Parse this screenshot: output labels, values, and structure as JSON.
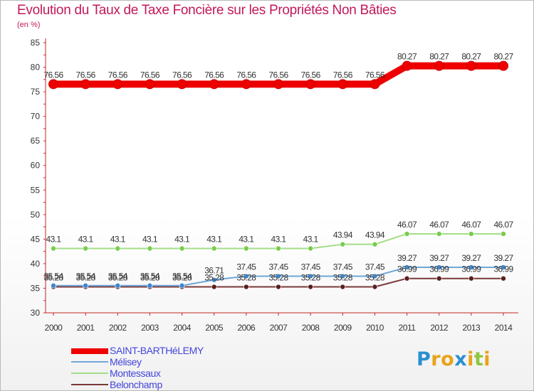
{
  "header": {
    "title": "Evolution du Taux de Taxe Foncière sur les Propriétés Non Bâties",
    "units": "(en %)"
  },
  "chart_data": {
    "type": "line",
    "title": "Evolution du Taux de Taxe Foncière sur les Propriétés Non Bâties",
    "ylabel": "(en %)",
    "xlabel": "",
    "x": [
      "2000",
      "2001",
      "2002",
      "2003",
      "2004",
      "2005",
      "2006",
      "2007",
      "2008",
      "2009",
      "2010",
      "2011",
      "2012",
      "2013",
      "2014"
    ],
    "ylim": [
      30,
      85
    ],
    "yticks": [
      30,
      35,
      40,
      45,
      50,
      55,
      60,
      65,
      70,
      75,
      80,
      85
    ],
    "grid": false,
    "legend": "bottom-left",
    "series": [
      {
        "name": "SAINT-BARTHéLEMY",
        "color": "#ee0000",
        "width": "thick",
        "values": [
          76.56,
          76.56,
          76.56,
          76.56,
          76.56,
          76.56,
          76.56,
          76.56,
          76.56,
          76.56,
          76.56,
          80.27,
          80.27,
          80.27,
          80.27
        ],
        "labels": [
          "76.56",
          "76.56",
          "76.56",
          "76.56",
          "76.56",
          "76.56",
          "76.56",
          "76.56",
          "76.56",
          "76.56",
          "76.56",
          "80.27",
          "80.27",
          "80.27",
          "80.27"
        ]
      },
      {
        "name": "Mélisey",
        "color": "#6fa7d8",
        "marker_color": "#3d87cc",
        "width": "thin",
        "values": [
          35.54,
          35.54,
          35.54,
          35.54,
          35.54,
          36.71,
          37.45,
          37.45,
          37.45,
          37.45,
          37.45,
          39.27,
          39.27,
          39.27,
          39.27
        ],
        "labels": [
          "35.54",
          "35.54",
          "35.54",
          "35.54",
          "35.54",
          "36.71",
          "37.45",
          "37.45",
          "37.45",
          "37.45",
          "37.45",
          "39.27",
          "39.27",
          "39.27",
          "39.27"
        ]
      },
      {
        "name": "Montessaux",
        "color": "#a3dd88",
        "marker_color": "#79cc4a",
        "width": "thin",
        "values": [
          43.1,
          43.1,
          43.1,
          43.1,
          43.1,
          43.1,
          43.1,
          43.1,
          43.1,
          43.94,
          43.94,
          46.07,
          46.07,
          46.07,
          46.07
        ],
        "labels": [
          "43.1",
          "43.1",
          "43.1",
          "43.1",
          "43.1",
          "43.1",
          "43.1",
          "43.1",
          "43.1",
          "43.94",
          "43.94",
          "46.07",
          "46.07",
          "46.07",
          "46.07"
        ]
      },
      {
        "name": "Belonchamp",
        "color": "#7a3838",
        "marker_color": "#5c1f1f",
        "width": "thin",
        "values": [
          35.28,
          35.28,
          35.28,
          35.28,
          35.28,
          35.28,
          35.28,
          35.28,
          35.28,
          35.28,
          35.28,
          36.99,
          36.99,
          36.99,
          36.99
        ],
        "labels": [
          "35.28",
          "35.28",
          "35.28",
          "35.28",
          "35.28",
          "35.28",
          "35.28",
          "35.28",
          "35.28",
          "35.28",
          "35.28",
          "36.99",
          "36.99",
          "36.99",
          "36.99"
        ]
      }
    ]
  },
  "legend": {
    "items": [
      {
        "label": "SAINT-BARTHéLEMY",
        "color": "#ee0000"
      },
      {
        "label": "Mélisey",
        "color": "#6fa7d8"
      },
      {
        "label": "Montessaux",
        "color": "#a3dd88"
      },
      {
        "label": "Belonchamp",
        "color": "#7a3838"
      }
    ]
  },
  "brand": {
    "letters": [
      "P",
      "r",
      "o",
      "x",
      "i",
      "t",
      "i"
    ],
    "colors": [
      "#2b8fd1",
      "#e8a319",
      "#e8a319",
      "#2b8fd1",
      "#e8a319",
      "#8ec63f",
      "#e8a319"
    ]
  }
}
